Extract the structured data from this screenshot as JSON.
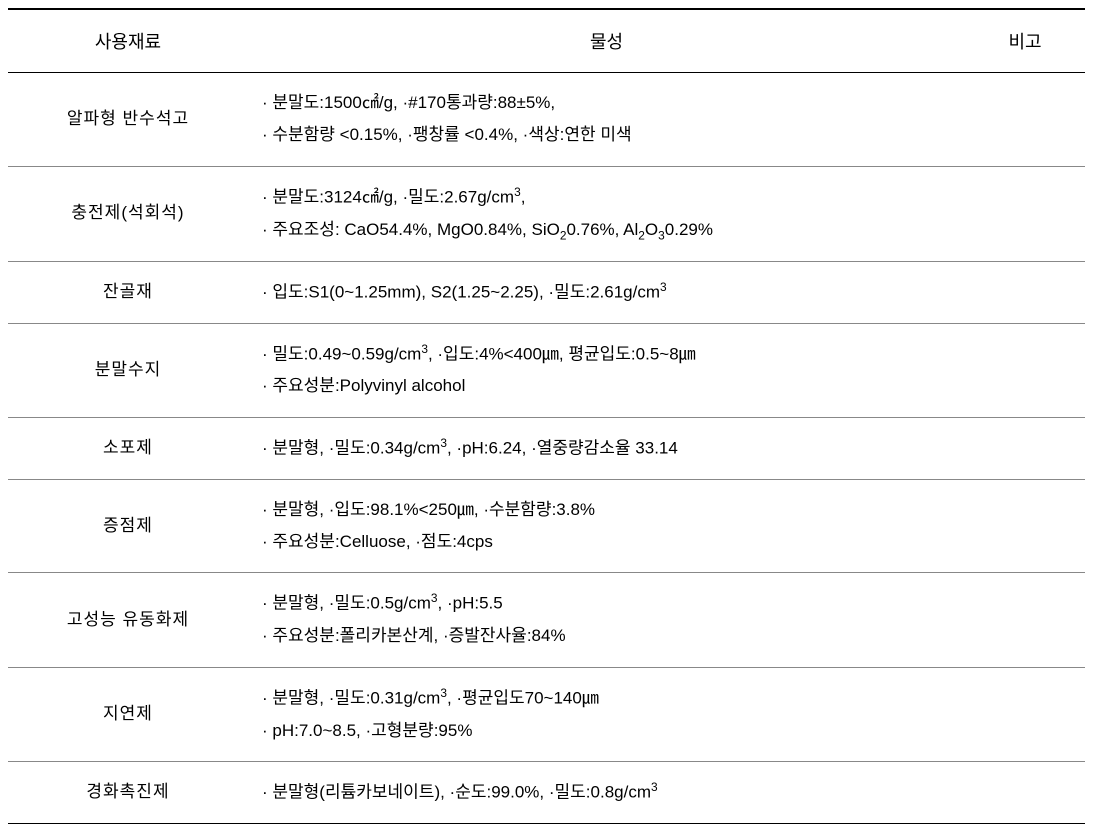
{
  "table": {
    "columns": {
      "material": "사용재료",
      "property": "물성",
      "note": "비고"
    },
    "column_widths": {
      "material": 240,
      "property": "auto",
      "note": 120
    },
    "header_fontsize": 18,
    "body_fontsize": 17,
    "text_color": "#000000",
    "background_color": "#ffffff",
    "border_top_color": "#000000",
    "border_top_width": 2,
    "border_bottom_color": "#000000",
    "border_bottom_width": 1.5,
    "row_border_color": "#888888",
    "header_border_style": "double",
    "rows": [
      {
        "material": "알파형  반수석고",
        "property_lines": [
          "· 분말도:1500㎠/g,   ·#170통과량:88±5%,",
          "· 수분함량 <0.15%,   ·팽창률 <0.4%,   ·색상:연한 미색"
        ],
        "note": ""
      },
      {
        "material": "충전제(석회석)",
        "property_lines": [
          "· 분말도:3124㎠/g,   ·밀도:2.67g/cm³,",
          "· 주요조성: CaO54.4%, MgO0.84%, SiO₂0.76%, Al₂O₃0.29%"
        ],
        "note": ""
      },
      {
        "material": "잔골재",
        "property_lines": [
          "· 입도:S1(0~1.25mm), S2(1.25~2.25),   ·밀도:2.61g/cm³"
        ],
        "note": ""
      },
      {
        "material": "분말수지",
        "property_lines": [
          "· 밀도:0.49~0.59g/cm³,   ·입도:4%<400㎛, 평균입도:0.5~8㎛",
          "· 주요성분:Polyvinyl alcohol"
        ],
        "note": ""
      },
      {
        "material": "소포제",
        "property_lines": [
          "· 분말형, ·밀도:0.34g/cm³,   ·pH:6.24,   ·열중량감소율 33.14"
        ],
        "note": ""
      },
      {
        "material": "증점제",
        "property_lines": [
          "· 분말형, ·입도:98.1%<250㎛,   ·수분함량:3.8%",
          "· 주요성분:Celluose,   ·점도:4cps"
        ],
        "note": ""
      },
      {
        "material": "고성능  유동화제",
        "property_lines": [
          "· 분말형,   ·밀도:0.5g/cm³,   ·pH:5.5",
          "· 주요성분:폴리카본산계,   ·증발잔사율:84%"
        ],
        "note": ""
      },
      {
        "material": "지연제",
        "property_lines": [
          "· 분말형,   ·밀도:0.31g/cm³,   ·평균입도70~140㎛",
          "· pH:7.0~8.5,   ·고형분량:95%"
        ],
        "note": ""
      },
      {
        "material": "경화촉진제",
        "property_lines": [
          "· 분말형(리튬카보네이트),   ·순도:99.0%,   ·밀도:0.8g/cm³"
        ],
        "note": ""
      }
    ]
  }
}
